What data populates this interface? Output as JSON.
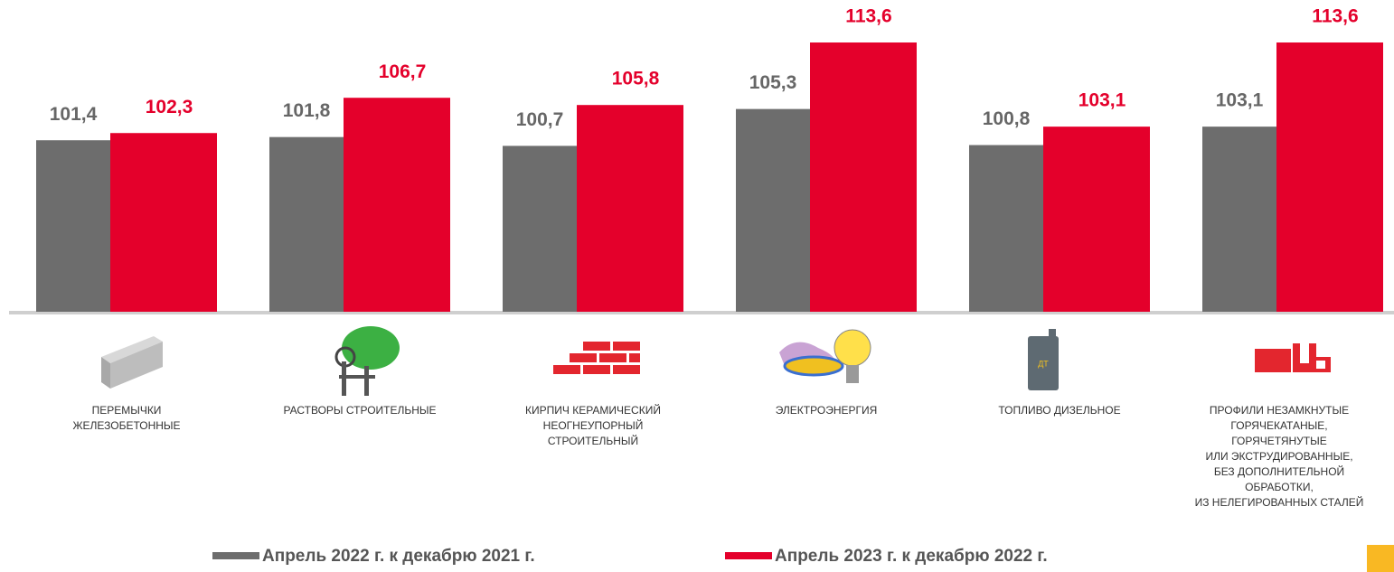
{
  "chart_data": {
    "type": "bar",
    "categories": [
      "ПЕРЕМЫЧКИ\nЖЕЛЕЗОБЕТОННЫЕ",
      "РАСТВОРЫ СТРОИТЕЛЬНЫЕ",
      "КИРПИЧ КЕРАМИЧЕСКИЙ\nНЕОГНЕУПОРНЫЙ\nСТРОИТЕЛЬНЫЙ",
      "ЭЛЕКТРОЭНЕРГИЯ",
      "ТОПЛИВО ДИЗЕЛЬНОЕ",
      "ПРОФИЛИ НЕЗАМКНУТЫЕ\nГОРЯЧЕКАТАНЫЕ,\nГОРЯЧЕТЯНУТЫЕ\nИЛИ ЭКСТРУДИРОВАННЫЕ,\nБЕЗ ДОПОЛНИТЕЛЬНОЙ\nОБРАБОТКИ,\nИЗ НЕЛЕГИРОВАННЫХ СТАЛЕЙ"
    ],
    "series": [
      {
        "name": "Апрель 2022 г. к декабрю 2021 г.",
        "color": "#6d6d6d",
        "values": [
          101.4,
          101.8,
          100.7,
          105.3,
          100.8,
          103.1
        ],
        "value_labels": [
          "101,4",
          "101,8",
          "100,7",
          "105,3",
          "100,8",
          "103,1"
        ]
      },
      {
        "name": "Апрель 2023 г. к декабрю 2022 г.",
        "color": "#e4002b",
        "values": [
          102.3,
          106.7,
          105.8,
          113.6,
          103.1,
          113.6
        ],
        "value_labels": [
          "102,3",
          "106,7",
          "105,8",
          "113,6",
          "103,1",
          "113,6"
        ]
      }
    ],
    "ylim": [
      80,
      118
    ]
  }
}
